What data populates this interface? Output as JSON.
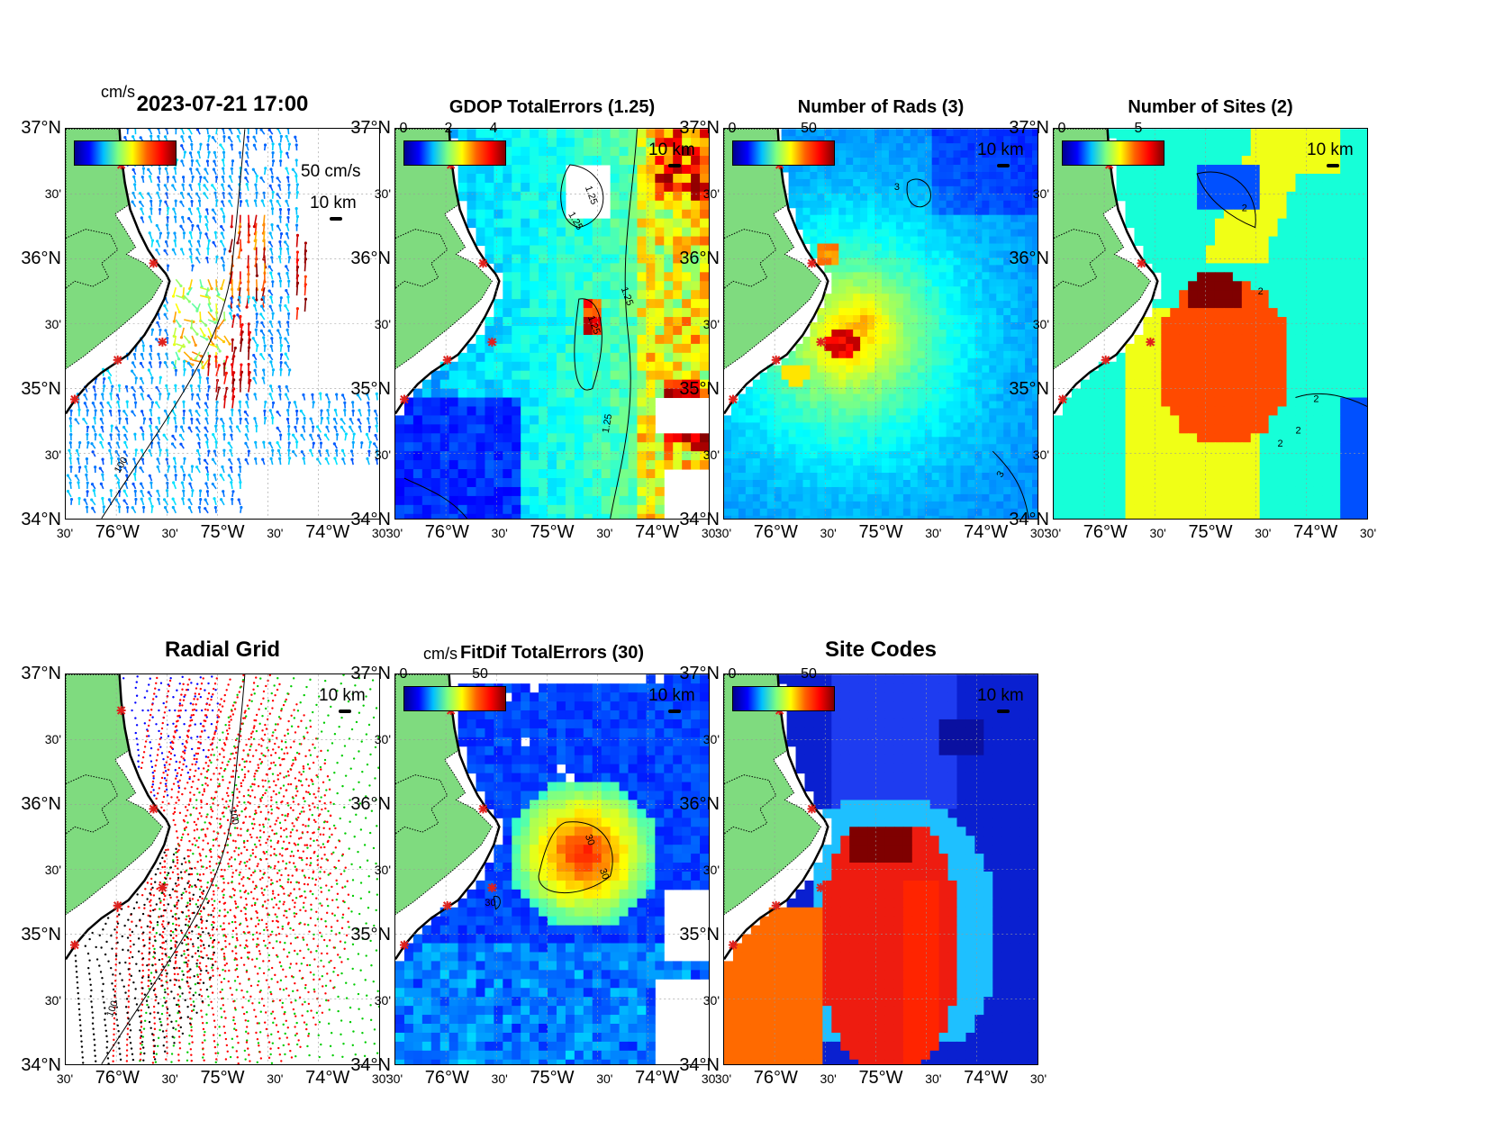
{
  "time_title": "2023-07-21 17:00",
  "axis": {
    "y_labels": [
      "37°N",
      "30'",
      "36°N",
      "30'",
      "35°N",
      "30'",
      "34°N"
    ],
    "x_labels": [
      "30'",
      "76°W",
      "30'",
      "75°W",
      "30'",
      "74°W",
      "30'"
    ]
  },
  "panels": [
    {
      "id": "p1",
      "title": "2023-07-21 17:00",
      "type": "vectors",
      "cbar_unit": "cm/s",
      "cbar_ticks": [],
      "scale_label": "10 km",
      "vector_label": "50 cm/s",
      "contour_labels": [
        "100"
      ]
    },
    {
      "id": "p2",
      "title": "GDOP TotalErrors (1.25)",
      "type": "gdop",
      "cbar_ticks": [
        "0",
        "2",
        "4"
      ],
      "scale_label": "10 km",
      "contour_labels": [
        "1.25",
        "1.25",
        "1.25",
        "1.25",
        "1.25"
      ]
    },
    {
      "id": "p3",
      "title": "Number of Rads (3)",
      "type": "rads",
      "cbar_ticks": [
        "0",
        "50"
      ],
      "scale_label": "10 km",
      "contour_labels": [
        "3",
        "3"
      ]
    },
    {
      "id": "p4",
      "title": "Number of Sites (2)",
      "type": "sites",
      "cbar_ticks": [
        "0",
        "5"
      ],
      "scale_label": "10 km",
      "contour_labels": [
        "2",
        "2",
        "2",
        "2",
        "2"
      ]
    },
    {
      "id": "p5",
      "title": "Radial Grid",
      "type": "radial",
      "cbar_ticks": [],
      "scale_label": "10 km",
      "contour_labels": [
        "100",
        "100"
      ]
    },
    {
      "id": "p6",
      "title": "FitDif TotalErrors (30)",
      "type": "fitdif",
      "cbar_unit": "cm/s",
      "cbar_ticks": [
        "0",
        "50"
      ],
      "scale_label": "10 km",
      "contour_labels": [
        "30",
        "30",
        "30"
      ]
    },
    {
      "id": "p7",
      "title": "Site Codes",
      "type": "codes",
      "cbar_ticks": [
        "0",
        "50"
      ],
      "scale_label": "10 km",
      "contour_labels": []
    }
  ],
  "colors": {
    "land": "#7fdb7f",
    "sites": "#e0201c",
    "radial_sites": [
      "#0000ff",
      "#ff0000",
      "#00cc00",
      "#ff0000",
      "#000000"
    ]
  }
}
